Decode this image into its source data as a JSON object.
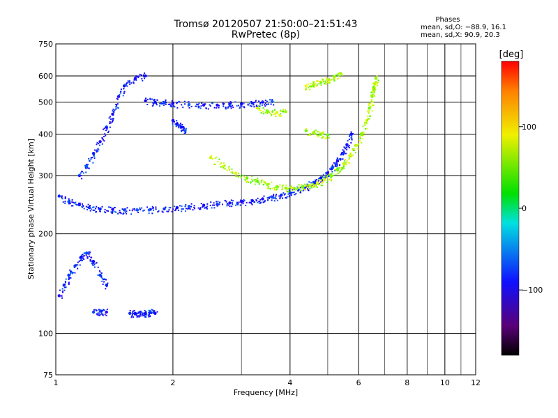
{
  "chart_data": {
    "type": "scatter",
    "title": "Tromsø 20120507 21:50:00–21:51:43",
    "subtitle": "RwPretec (8p)",
    "xlabel": "Frequency [MHz]",
    "ylabel": "Stationary phase Virtual Height [km]",
    "x_scale": "log",
    "y_scale": "log",
    "xlim": [
      1,
      12
    ],
    "ylim": [
      75,
      750
    ],
    "x_ticks": [
      1,
      2,
      4,
      6,
      8,
      10,
      12
    ],
    "y_ticks": [
      75,
      100,
      200,
      300,
      400,
      500,
      600,
      750
    ],
    "grid": true,
    "phases_box": {
      "title": "Phases",
      "line1": "mean, sd,O: −88.9, 16.1",
      "line2": "mean, sd,X:  90.9, 20.3"
    },
    "colorbar": {
      "label": "[deg]",
      "range": [
        -180,
        180
      ],
      "ticks": [
        100,
        0,
        -100
      ],
      "tick_labels": [
        "100",
        "0",
        "−100"
      ]
    },
    "colors": {
      "background": "#ffffff",
      "grid": "#000000",
      "o_mode": "#2030e0",
      "x_mode": "#e8e020"
    },
    "series": [
      {
        "mode": "O",
        "phase_deg": -90,
        "traces": [
          {
            "f": [
              1.02,
              1.08,
              1.15,
              1.22,
              1.3,
              1.4,
              1.5,
              1.62,
              1.75,
              1.9,
              2.05,
              2.2,
              2.4,
              2.6,
              2.8,
              3.0,
              3.2,
              3.4,
              3.6,
              3.8,
              4.0,
              4.2,
              4.4,
              4.6,
              4.8,
              5.0
            ],
            "h": [
              260,
              250,
              245,
              240,
              238,
              237,
              236,
              236,
              237,
              238,
              240,
              242,
              244,
              246,
              248,
              250,
              252,
              255,
              258,
              262,
              266,
              272,
              278,
              286,
              295,
              305
            ]
          },
          {
            "f": [
              5.0,
              5.15,
              5.3,
              5.45,
              5.6,
              5.75
            ],
            "h": [
              305,
              318,
              332,
              350,
              372,
              400
            ]
          },
          {
            "f": [
              1.7,
              1.8,
              1.9,
              2.0,
              2.2,
              2.4,
              2.6,
              2.8,
              3.0,
              3.2,
              3.4,
              3.6
            ],
            "h": [
              505,
              500,
              498,
              495,
              492,
              490,
              490,
              492,
              494,
              497,
              500,
              502
            ]
          },
          {
            "f": [
              1.02,
              1.05,
              1.08,
              1.12,
              1.16,
              1.2,
              1.25,
              1.3,
              1.35
            ],
            "h": [
              130,
              140,
              150,
              160,
              170,
              175,
              165,
              150,
              140
            ]
          },
          {
            "f": [
              1.55,
              1.6,
              1.65,
              1.7,
              1.75,
              1.8
            ],
            "h": [
              115,
              115,
              116,
              115,
              116,
              115
            ]
          },
          {
            "f": [
              1.25,
              1.3,
              1.35
            ],
            "h": [
              116,
              117,
              116
            ]
          },
          {
            "f": [
              2.0,
              2.05,
              2.1,
              2.15
            ],
            "h": [
              440,
              430,
              420,
              410
            ]
          },
          {
            "f": [
              1.15,
              1.2,
              1.25,
              1.3,
              1.35,
              1.4,
              1.45,
              1.5,
              1.6,
              1.7
            ],
            "h": [
              300,
              320,
              350,
              380,
              420,
              460,
              520,
              560,
              590,
              600
            ]
          }
        ]
      },
      {
        "mode": "X",
        "phase_deg": 90,
        "traces": [
          {
            "f": [
              2.5,
              2.7,
              2.9,
              3.1,
              3.3,
              3.5,
              3.7,
              3.9,
              4.1,
              4.3,
              4.5,
              4.7,
              4.9,
              5.1,
              5.3,
              5.5,
              5.7,
              5.9,
              6.1,
              6.3
            ],
            "h": [
              340,
              320,
              305,
              295,
              288,
              282,
              278,
              275,
              275,
              277,
              280,
              285,
              292,
              300,
              312,
              326,
              345,
              370,
              400,
              440
            ]
          },
          {
            "f": [
              6.3,
              6.4,
              6.5,
              6.55,
              6.6,
              6.65
            ],
            "h": [
              440,
              480,
              520,
              550,
              570,
              590
            ]
          },
          {
            "f": [
              3.3,
              3.5,
              3.7,
              3.9
            ],
            "h": [
              480,
              470,
              465,
              468
            ]
          },
          {
            "f": [
              4.4,
              4.6,
              4.8,
              5.0,
              5.2,
              5.4
            ],
            "h": [
              560,
              565,
              575,
              585,
              595,
              610
            ]
          },
          {
            "f": [
              4.4,
              4.6,
              4.8,
              5.0
            ],
            "h": [
              410,
              405,
              400,
              398
            ]
          }
        ]
      }
    ]
  }
}
